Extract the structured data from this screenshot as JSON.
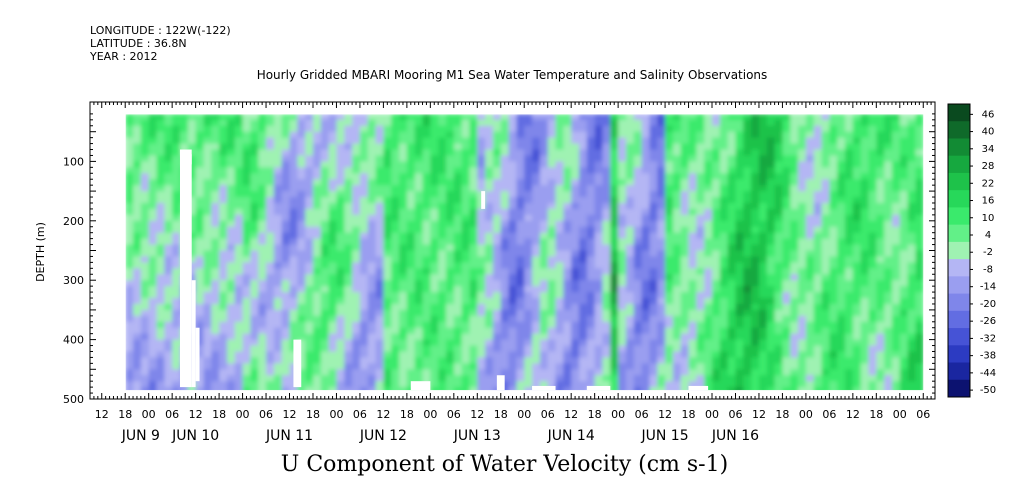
{
  "header": {
    "longitude": "LONGITUDE : 122W(-122)",
    "latitude": "LATITUDE : 36.8N",
    "year": "YEAR : 2012"
  },
  "chart_data": {
    "type": "heatmap",
    "title": "Hourly Gridded MBARI Mooring M1 Sea Water Temperature and Salinity Observations",
    "bottom_title": "U Component of Water Velocity (cm s-1)",
    "xlabel": "",
    "ylabel": "DEPTH (m)",
    "x_hours_range": [
      -15,
      201
    ],
    "data_x_hours_range": [
      -6,
      198
    ],
    "y_range": [
      500,
      0
    ],
    "data_depth_range": [
      20,
      485
    ],
    "y_ticks": [
      100,
      200,
      300,
      400,
      500
    ],
    "x_tick_labels": [
      "12",
      "18",
      "00",
      "06",
      "12",
      "18",
      "00",
      "06",
      "12",
      "18",
      "00",
      "06",
      "12",
      "18",
      "00",
      "06",
      "12",
      "18",
      "00",
      "06",
      "12",
      "18",
      "00",
      "06",
      "12",
      "18",
      "00",
      "06",
      "12",
      "18",
      "00",
      "06",
      "12",
      "18",
      "00",
      "06"
    ],
    "day_labels": [
      {
        "label": "JUN  9",
        "hour": -2
      },
      {
        "label": "JUN 10",
        "hour": 12
      },
      {
        "label": "JUN 11",
        "hour": 36
      },
      {
        "label": "JUN 12",
        "hour": 60
      },
      {
        "label": "JUN 13",
        "hour": 84
      },
      {
        "label": "JUN 14",
        "hour": 108
      },
      {
        "label": "JUN 15",
        "hour": 132
      },
      {
        "label": "JUN 16",
        "hour": 150
      }
    ],
    "colorbar": {
      "labels": [
        "46",
        "40",
        "34",
        "28",
        "22",
        "16",
        "10",
        "4",
        "-2",
        "-8",
        "-14",
        "-20",
        "-26",
        "-32",
        "-38",
        "-44",
        "-50"
      ],
      "colors": [
        "#0a4a1f",
        "#0f6a2a",
        "#128b34",
        "#16a83f",
        "#1ec24a",
        "#27d85a",
        "#3aea6c",
        "#62f088",
        "#9ff2b2",
        "#b4b6f4",
        "#9a9ef0",
        "#7f86ea",
        "#626de2",
        "#4653d6",
        "#2c3bc2",
        "#1a26a0",
        "#0c1270"
      ]
    },
    "day_patterns": [
      {
        "hour_start": -6,
        "hour_end": 0,
        "trend": "mixed-green-surface, blue-bottom"
      },
      {
        "hour_start": 0,
        "hour_end": 24,
        "trend": "green upper, blue lower"
      },
      {
        "hour_start": 24,
        "hour_end": 60,
        "trend": "alternating green and blue bands"
      },
      {
        "hour_start": 60,
        "hour_end": 84,
        "trend": "green dominant"
      },
      {
        "hour_start": 84,
        "hour_end": 132,
        "trend": "blue dominant with green streaks"
      },
      {
        "hour_start": 132,
        "hour_end": 198,
        "trend": "green dominant with blue patches"
      }
    ]
  }
}
